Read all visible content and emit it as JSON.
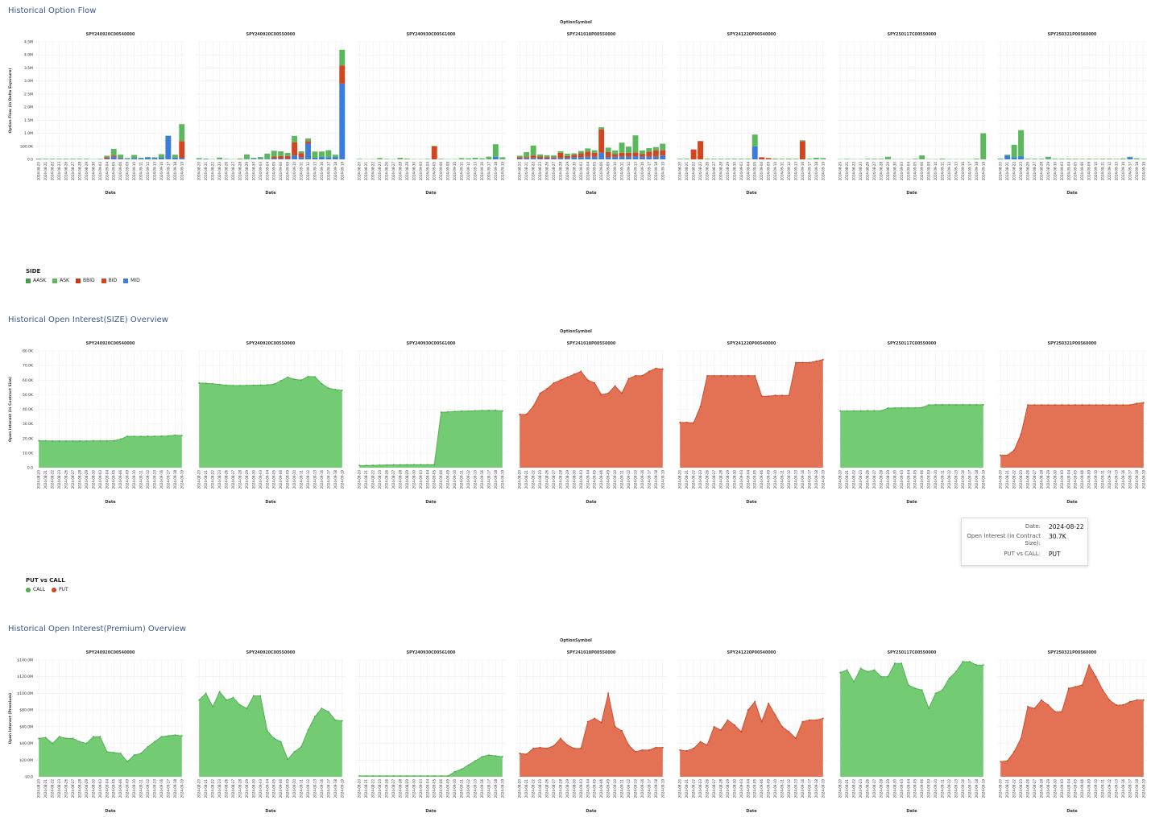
{
  "sections": {
    "flow_title": "Historical Option Flow",
    "size_title": "Historical Open Interest(SIZE) Overview",
    "premium_title": "Historical Open Interest(Premium) Overview"
  },
  "facet_header": "OptionSymbol",
  "facets": [
    {
      "symbol": "SPY240920C00540000",
      "side": "CALL"
    },
    {
      "symbol": "SPY240920C00550000",
      "side": "CALL"
    },
    {
      "symbol": "SPY240930C00561000",
      "side": "CALL"
    },
    {
      "symbol": "SPY241018P00550000",
      "side": "PUT"
    },
    {
      "symbol": "SPY241220P00540000",
      "side": "PUT"
    },
    {
      "symbol": "SPY250117C00550000",
      "side": "CALL"
    },
    {
      "symbol": "SPY250321P00560000",
      "side": "PUT"
    }
  ],
  "dates": [
    "2024-08-20",
    "2024-08-21",
    "2024-08-22",
    "2024-08-23",
    "2024-08-26",
    "2024-08-27",
    "2024-08-28",
    "2024-08-29",
    "2024-08-30",
    "2024-09-03",
    "2024-09-04",
    "2024-09-05",
    "2024-09-06",
    "2024-09-09",
    "2024-09-10",
    "2024-09-11",
    "2024-09-12",
    "2024-09-13",
    "2024-09-16",
    "2024-09-17",
    "2024-09-18",
    "2024-09-19"
  ],
  "colors": {
    "AASK": "#4a9e4a",
    "ASK": "#5cb85c",
    "BBID": "#c4391a",
    "BID": "#d2461f",
    "MID": "#3b7ddd",
    "CALL": "#6cc96c",
    "CALL_line": "#4cae4c",
    "PUT": "#e06a4a",
    "PUT_line": "#c94a2a",
    "grid": "#ececec",
    "axis_text": "#333333"
  },
  "chart_data": [
    {
      "type": "bar",
      "title": "Historical Option Flow",
      "ylabel": "Option Flow (in Delta Exposure)",
      "xlabel": "Date",
      "ylim": [
        0,
        4500000
      ],
      "yticks": [
        "0.0",
        "500.0K",
        "1.0M",
        "1.5M",
        "2.0M",
        "2.5M",
        "3.0M",
        "3.5M",
        "4.0M",
        "4.5M"
      ],
      "stacked": true,
      "legend": {
        "title": "SIDE",
        "items": [
          "AASK",
          "ASK",
          "BBID",
          "BID",
          "MID"
        ]
      },
      "panels": [
        {
          "MID": [
            10000,
            0,
            0,
            0,
            0,
            0,
            0,
            0,
            0,
            10000,
            30000,
            100000,
            40000,
            20000,
            50000,
            30000,
            60000,
            50000,
            80000,
            900000,
            60000,
            50000
          ],
          "BID": [
            0,
            0,
            0,
            0,
            0,
            0,
            0,
            0,
            0,
            0,
            50000,
            50000,
            20000,
            0,
            0,
            0,
            0,
            0,
            0,
            0,
            0,
            650000
          ],
          "AASK": [
            20000,
            0,
            0,
            0,
            0,
            0,
            0,
            0,
            10000,
            10000,
            60000,
            250000,
            120000,
            30000,
            120000,
            30000,
            30000,
            30000,
            120000,
            10000,
            120000,
            650000
          ]
        },
        {
          "MID": [
            10000,
            10000,
            0,
            10000,
            0,
            0,
            0,
            10000,
            20000,
            20000,
            20000,
            30000,
            30000,
            30000,
            150000,
            80000,
            600000,
            60000,
            100000,
            80000,
            100000,
            2900000
          ],
          "BID": [
            0,
            0,
            0,
            0,
            0,
            0,
            0,
            0,
            0,
            0,
            0,
            80000,
            100000,
            100000,
            500000,
            150000,
            100000,
            0,
            0,
            0,
            0,
            700000
          ],
          "AASK": [
            40000,
            20000,
            10000,
            60000,
            20000,
            10000,
            30000,
            180000,
            40000,
            70000,
            200000,
            220000,
            180000,
            120000,
            250000,
            80000,
            100000,
            240000,
            200000,
            270000,
            80000,
            600000
          ]
        },
        {
          "MID": [
            0,
            0,
            0,
            0,
            0,
            0,
            0,
            0,
            0,
            0,
            0,
            0,
            0,
            0,
            0,
            0,
            0,
            0,
            0,
            0,
            100000,
            0
          ],
          "BID": [
            0,
            0,
            0,
            0,
            0,
            0,
            0,
            0,
            0,
            0,
            0,
            500000,
            0,
            0,
            0,
            0,
            0,
            0,
            0,
            0,
            0,
            0
          ],
          "AASK": [
            20000,
            10000,
            10000,
            50000,
            20000,
            10000,
            60000,
            30000,
            10000,
            10000,
            20000,
            20000,
            0,
            10000,
            10000,
            50000,
            40000,
            60000,
            40000,
            100000,
            480000,
            80000
          ]
        },
        {
          "MID": [
            30000,
            40000,
            50000,
            30000,
            30000,
            40000,
            50000,
            50000,
            80000,
            80000,
            100000,
            100000,
            250000,
            80000,
            100000,
            100000,
            100000,
            120000,
            100000,
            100000,
            100000,
            150000
          ],
          "BID": [
            50000,
            50000,
            100000,
            80000,
            60000,
            40000,
            200000,
            80000,
            100000,
            150000,
            200000,
            150000,
            900000,
            200000,
            100000,
            150000,
            150000,
            150000,
            100000,
            200000,
            250000,
            200000
          ],
          "AASK": [
            60000,
            190000,
            380000,
            80000,
            70000,
            70000,
            60000,
            90000,
            50000,
            90000,
            120000,
            100000,
            80000,
            170000,
            140000,
            390000,
            240000,
            650000,
            140000,
            130000,
            120000,
            250000
          ]
        },
        {
          "MID": [
            0,
            0,
            0,
            0,
            0,
            0,
            0,
            0,
            0,
            0,
            0,
            500000,
            0,
            0,
            0,
            0,
            0,
            0,
            0,
            0,
            0,
            0
          ],
          "BID": [
            0,
            0,
            380000,
            700000,
            0,
            0,
            0,
            0,
            0,
            0,
            0,
            0,
            80000,
            50000,
            0,
            0,
            0,
            0,
            700000,
            0,
            0,
            0
          ],
          "AASK": [
            0,
            0,
            0,
            0,
            0,
            0,
            0,
            0,
            0,
            0,
            0,
            450000,
            0,
            0,
            30000,
            0,
            30000,
            0,
            30000,
            0,
            60000,
            50000
          ]
        },
        {
          "MID": [
            0,
            0,
            0,
            0,
            0,
            0,
            0,
            0,
            0,
            0,
            0,
            0,
            0,
            0,
            0,
            0,
            0,
            0,
            0,
            0,
            0,
            0
          ],
          "BID": [
            0,
            0,
            0,
            0,
            0,
            0,
            0,
            0,
            0,
            0,
            0,
            0,
            0,
            0,
            0,
            0,
            0,
            0,
            0,
            0,
            0,
            0
          ],
          "AASK": [
            10000,
            20000,
            10000,
            10000,
            0,
            0,
            0,
            100000,
            10000,
            10000,
            10000,
            0,
            150000,
            10000,
            10000,
            30000,
            10000,
            10000,
            10000,
            10000,
            30000,
            1000000
          ]
        },
        {
          "MID": [
            0,
            150000,
            80000,
            120000,
            0,
            0,
            0,
            20000,
            0,
            0,
            0,
            0,
            0,
            0,
            0,
            0,
            0,
            0,
            0,
            80000,
            0,
            0
          ],
          "BID": [
            0,
            0,
            0,
            0,
            0,
            0,
            0,
            0,
            0,
            0,
            0,
            0,
            0,
            0,
            0,
            0,
            0,
            0,
            0,
            0,
            0,
            0
          ],
          "AASK": [
            30000,
            30000,
            480000,
            1000000,
            0,
            0,
            0,
            80000,
            0,
            0,
            0,
            0,
            20000,
            0,
            20000,
            0,
            0,
            20000,
            30000,
            20000,
            40000,
            20000
          ]
        }
      ]
    },
    {
      "type": "area",
      "title": "Historical Open Interest(SIZE) Overview",
      "ylabel": "Open Interest (in Contract Size)",
      "xlabel": "Date",
      "ylim": [
        0,
        80000
      ],
      "yticks": [
        "0.0",
        "10.0K",
        "20.0K",
        "30.0K",
        "40.0K",
        "50.0K",
        "60.0K",
        "70.0K",
        "80.0K"
      ],
      "legend": {
        "title": "PUT vs CALL",
        "items": [
          "CALL",
          "PUT"
        ]
      },
      "series": [
        {
          "values": [
            18500,
            18400,
            18300,
            18300,
            18300,
            18300,
            18300,
            18300,
            18400,
            18400,
            18400,
            18500,
            19500,
            21500,
            21400,
            21400,
            21500,
            21500,
            21600,
            21700,
            22300,
            22000
          ]
        },
        {
          "values": [
            58000,
            57800,
            57500,
            57000,
            56500,
            56300,
            56300,
            56400,
            56500,
            56600,
            56700,
            57200,
            59500,
            62000,
            60500,
            60000,
            62500,
            62300,
            57500,
            54500,
            53500,
            53000
          ]
        },
        {
          "values": [
            1500,
            1500,
            1600,
            1700,
            1800,
            1900,
            1900,
            2000,
            2000,
            2000,
            2000,
            2000,
            38000,
            38200,
            38500,
            38700,
            38800,
            39000,
            39100,
            39200,
            39300,
            38800
          ]
        },
        {
          "values": [
            36500,
            36500,
            42000,
            51000,
            54000,
            58000,
            60000,
            62000,
            64000,
            66000,
            60000,
            58000,
            50000,
            51000,
            56000,
            51000,
            61000,
            63000,
            63000,
            66000,
            68000,
            67500
          ]
        },
        {
          "values": [
            31000,
            31000,
            30700,
            42000,
            63000,
            63000,
            63000,
            63000,
            63000,
            63000,
            63000,
            63000,
            49000,
            49000,
            49500,
            49500,
            49500,
            72000,
            72000,
            72000,
            73000,
            74000
          ]
        },
        {
          "values": [
            38800,
            38800,
            38900,
            38900,
            39000,
            39000,
            39000,
            40800,
            40900,
            41000,
            41000,
            41000,
            41200,
            43000,
            43100,
            43100,
            43100,
            43100,
            43100,
            43100,
            43100,
            43100
          ]
        },
        {
          "values": [
            8500,
            8500,
            12000,
            23000,
            43000,
            43000,
            43000,
            43000,
            43000,
            43000,
            43000,
            43000,
            43000,
            43000,
            43000,
            43000,
            43000,
            43000,
            43000,
            43000,
            44000,
            44500
          ]
        }
      ]
    },
    {
      "type": "area",
      "title": "Historical Open Interest(Premium) Overview",
      "ylabel": "Open Interest (Premium)",
      "xlabel": "Date",
      "ylim": [
        0,
        140000000
      ],
      "yticks": [
        "$0.0",
        "$20.0M",
        "$40.0M",
        "$60.0M",
        "$80.0M",
        "$100.0M",
        "$120.0M",
        "$140.0M"
      ],
      "series": [
        {
          "values": [
            46000000,
            47000000,
            40000000,
            48000000,
            46000000,
            46000000,
            42000000,
            40000000,
            48000000,
            48000000,
            30000000,
            29000000,
            28000000,
            18000000,
            26000000,
            28000000,
            36000000,
            42000000,
            48000000,
            49000000,
            50000000,
            49000000
          ]
        },
        {
          "values": [
            92000000,
            100000000,
            84000000,
            102000000,
            92000000,
            95000000,
            86000000,
            82000000,
            97000000,
            97000000,
            55000000,
            46000000,
            42000000,
            21000000,
            30000000,
            36000000,
            56000000,
            72000000,
            82000000,
            78000000,
            68000000,
            67000000
          ]
        },
        {
          "values": [
            1000000,
            1000000,
            1000000,
            1000000,
            1000000,
            1000000,
            1000000,
            1000000,
            1000000,
            1000000,
            1000000,
            1000000,
            1000000,
            1000000,
            6000000,
            9000000,
            14000000,
            19000000,
            24000000,
            26000000,
            25000000,
            24000000
          ]
        },
        {
          "values": [
            28000000,
            27000000,
            34000000,
            35000000,
            34000000,
            37000000,
            46000000,
            38000000,
            34000000,
            34000000,
            66000000,
            70000000,
            65000000,
            100000000,
            60000000,
            55000000,
            38000000,
            30000000,
            32000000,
            32000000,
            35000000,
            35000000
          ]
        },
        {
          "values": [
            32000000,
            31000000,
            34000000,
            42000000,
            38000000,
            60000000,
            56000000,
            68000000,
            62000000,
            54000000,
            80000000,
            90000000,
            66000000,
            88000000,
            74000000,
            60000000,
            54000000,
            46000000,
            66000000,
            68000000,
            68000000,
            70000000
          ]
        },
        {
          "values": [
            125000000,
            128000000,
            114000000,
            130000000,
            126000000,
            128000000,
            120000000,
            120000000,
            136000000,
            136000000,
            110000000,
            106000000,
            104000000,
            82000000,
            100000000,
            104000000,
            118000000,
            126000000,
            138000000,
            138000000,
            134000000,
            134000000
          ]
        },
        {
          "values": [
            18000000,
            19000000,
            30000000,
            46000000,
            84000000,
            82000000,
            92000000,
            86000000,
            78000000,
            78000000,
            106000000,
            108000000,
            110000000,
            134000000,
            120000000,
            104000000,
            92000000,
            86000000,
            86000000,
            90000000,
            92000000,
            92000000
          ]
        }
      ]
    }
  ],
  "tooltip": {
    "date_label": "Date:",
    "date_value": "2024-08-22",
    "oi_label": "Open Interest (in Contract Size):",
    "oi_value": "30.7K",
    "side_label": "PUT vs CALL:",
    "side_value": "PUT"
  }
}
